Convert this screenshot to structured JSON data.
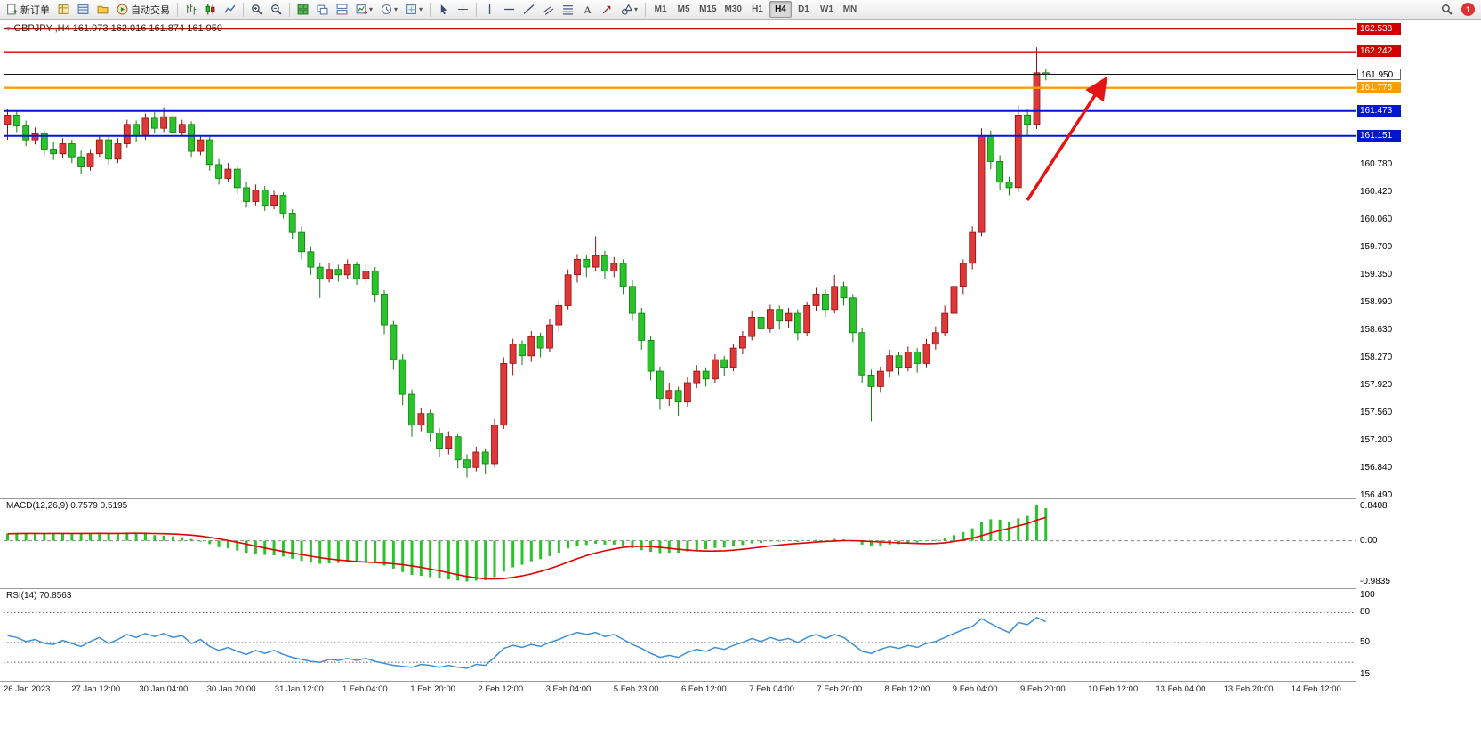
{
  "toolbar": {
    "new_order_label": "新订单",
    "auto_trading_label": "自动交易",
    "timeframes": [
      "M1",
      "M5",
      "M15",
      "M30",
      "H1",
      "H4",
      "D1",
      "W1",
      "MN"
    ],
    "active_timeframe": "H4",
    "notification_count": "1",
    "items": [
      {
        "type": "btn",
        "name": "new-order-button",
        "icon": "new-order",
        "label_key": "new_order_label"
      },
      {
        "type": "btn",
        "name": "market-watch-button",
        "icon": "market-watch"
      },
      {
        "type": "btn",
        "name": "data-window-button",
        "icon": "data-window"
      },
      {
        "type": "btn",
        "name": "navigator-button",
        "icon": "navigator"
      },
      {
        "type": "btn",
        "name": "auto-trading-button",
        "icon": "auto-trading",
        "label_key": "auto_trading_label"
      },
      {
        "type": "sep"
      },
      {
        "type": "btn",
        "name": "bar-chart-button",
        "icon": "bars"
      },
      {
        "type": "btn",
        "name": "candlestick-chart-button",
        "icon": "candles"
      },
      {
        "type": "btn",
        "name": "line-chart-button",
        "icon": "line"
      },
      {
        "type": "sep"
      },
      {
        "type": "btn",
        "name": "zoom-in-button",
        "icon": "zoom-in"
      },
      {
        "type": "btn",
        "name": "zoom-out-button",
        "icon": "zoom-out"
      },
      {
        "type": "sep"
      },
      {
        "type": "btn",
        "name": "tile-windows-button",
        "icon": "tile"
      },
      {
        "type": "btn",
        "name": "arrange-windows-button",
        "icon": "arrange"
      },
      {
        "type": "btn",
        "name": "cascade-windows-button",
        "icon": "cascade"
      },
      {
        "type": "btn",
        "name": "new-chart-button",
        "icon": "new-chart",
        "caret": true
      },
      {
        "type": "btn",
        "name": "periods-button",
        "icon": "clock",
        "caret": true
      },
      {
        "type": "btn",
        "name": "templates-button",
        "icon": "template",
        "caret": true
      },
      {
        "type": "sep"
      },
      {
        "type": "btn",
        "name": "cursor-button",
        "icon": "cursor"
      },
      {
        "type": "btn",
        "name": "crosshair-button",
        "icon": "crosshair"
      },
      {
        "type": "sep"
      },
      {
        "type": "btn",
        "name": "vertical-line-button",
        "icon": "vline"
      },
      {
        "type": "btn",
        "name": "horizontal-line-button",
        "icon": "hline"
      },
      {
        "type": "btn",
        "name": "trendline-button",
        "icon": "tline"
      },
      {
        "type": "btn",
        "name": "channel-button",
        "icon": "channel"
      },
      {
        "type": "btn",
        "name": "fibonacci-button",
        "icon": "fibo"
      },
      {
        "type": "btn",
        "name": "text-button",
        "icon": "text"
      },
      {
        "type": "btn",
        "name": "arrows-button",
        "icon": "arrows"
      },
      {
        "type": "btn",
        "name": "shapes-button",
        "icon": "shapes",
        "caret": true
      },
      {
        "type": "sep"
      }
    ]
  },
  "chart": {
    "symbol_label": "GBPJPY-,H4 161.973 162.016 161.874 161.950",
    "colors": {
      "up": "#df3838",
      "up_stroke": "#8d1010",
      "down": "#2bc32b",
      "down_stroke": "#0b7d0b",
      "wick": "#222222"
    },
    "price_max": 162.66,
    "price_min": 156.45,
    "levels": [
      {
        "value": 162.538,
        "label": "162.538",
        "line_color": "#d40000",
        "line_width": 1.4,
        "label_bg": "#d40000",
        "label_color": "#ffffff"
      },
      {
        "value": 162.242,
        "label": "162.242",
        "line_color": "#d40000",
        "line_width": 1.4,
        "label_bg": "#d40000",
        "label_color": "#ffffff"
      },
      {
        "value": 161.95,
        "label": "161.950",
        "line_color": "#111111",
        "line_width": 1,
        "label_bg": "#ffffff",
        "label_color": "#000000",
        "label_border": "#666666"
      },
      {
        "value": 161.775,
        "label": "161.775",
        "line_color": "#ff9c00",
        "line_width": 2.4,
        "label_bg": "#ff9c00",
        "label_color": "#ffffff"
      },
      {
        "value": 161.473,
        "label": "161.473",
        "line_color": "#0018cc",
        "line_width": 2,
        "label_bg": "#0018cc",
        "label_color": "#ffffff"
      },
      {
        "value": 161.151,
        "label": "161.151",
        "line_color": "#0018cc",
        "line_width": 2,
        "label_bg": "#0018cc",
        "label_color": "#ffffff"
      }
    ],
    "y_labels": [
      "160.780",
      "160.420",
      "160.060",
      "159.700",
      "159.350",
      "158.990",
      "158.630",
      "158.270",
      "157.920",
      "157.560",
      "157.200",
      "156.840",
      "156.490"
    ],
    "y_values": [
      160.78,
      160.42,
      160.06,
      159.7,
      159.35,
      158.99,
      158.63,
      158.27,
      157.92,
      157.56,
      157.2,
      156.84,
      156.49
    ]
  },
  "macd": {
    "label": "MACD(12,26,9) 0.7579 0.5195",
    "scale_top": "0.8408",
    "scale_zero": "0.00",
    "scale_bottom": "-0.9835",
    "scale_top_value": 0.8408,
    "scale_bottom_value": -0.9835,
    "hist_color": "#2bc32b",
    "signal_color": "#e00000"
  },
  "rsi": {
    "label": "RSI(14) 70.8563",
    "line_color": "#3f8fd4",
    "levels": [
      80,
      50,
      30
    ],
    "scale_labels": [
      {
        "text": "100",
        "value": 100
      },
      {
        "text": "80",
        "value": 80
      },
      {
        "text": "50",
        "value": 50
      },
      {
        "text": "15",
        "value": 15
      }
    ],
    "scale_max": 100,
    "scale_min": 15
  },
  "x_labels": [
    "26 Jan 2023",
    "27 Jan 12:00",
    "30 Jan 04:00",
    "30 Jan 20:00",
    "31 Jan 12:00",
    "1 Feb 04:00",
    "1 Feb 20:00",
    "2 Feb 12:00",
    "3 Feb 04:00",
    "5 Feb 23:00",
    "6 Feb 12:00",
    "7 Feb 04:00",
    "7 Feb 20:00",
    "8 Feb 12:00",
    "9 Feb 04:00",
    "9 Feb 20:00",
    "10 Feb 12:00",
    "13 Feb 04:00",
    "13 Feb 20:00",
    "14 Feb 12:00"
  ],
  "annotation": {
    "arrow_color": "#e41414"
  },
  "chart_data": {
    "type": "candlestick",
    "symbol": "GBPJPY-",
    "timeframe": "H4",
    "current_bar": {
      "open": "161.973",
      "high": "162.016",
      "low": "161.874",
      "close": "161.950"
    },
    "candles": [
      [
        161.3,
        161.5,
        161.1,
        161.42
      ],
      [
        161.42,
        161.48,
        161.2,
        161.28
      ],
      [
        161.28,
        161.35,
        161.02,
        161.1
      ],
      [
        161.1,
        161.26,
        161.04,
        161.18
      ],
      [
        161.18,
        161.22,
        160.9,
        160.98
      ],
      [
        160.98,
        161.08,
        160.84,
        160.92
      ],
      [
        160.92,
        161.12,
        160.86,
        161.05
      ],
      [
        161.05,
        161.1,
        160.8,
        160.88
      ],
      [
        160.88,
        160.96,
        160.66,
        160.75
      ],
      [
        160.75,
        160.98,
        160.7,
        160.92
      ],
      [
        160.92,
        161.16,
        160.88,
        161.1
      ],
      [
        161.1,
        161.15,
        160.78,
        160.85
      ],
      [
        160.85,
        161.12,
        160.8,
        161.05
      ],
      [
        161.05,
        161.36,
        161.0,
        161.3
      ],
      [
        161.3,
        161.35,
        161.08,
        161.15
      ],
      [
        161.15,
        161.44,
        161.1,
        161.38
      ],
      [
        161.38,
        161.46,
        161.18,
        161.25
      ],
      [
        161.25,
        161.52,
        161.2,
        161.4
      ],
      [
        161.4,
        161.45,
        161.12,
        161.2
      ],
      [
        161.2,
        161.36,
        161.14,
        161.3
      ],
      [
        161.3,
        161.34,
        160.88,
        160.95
      ],
      [
        160.95,
        161.16,
        160.9,
        161.1
      ],
      [
        161.1,
        161.14,
        160.7,
        160.78
      ],
      [
        160.78,
        160.85,
        160.52,
        160.6
      ],
      [
        160.6,
        160.8,
        160.55,
        160.72
      ],
      [
        160.72,
        160.76,
        160.4,
        160.48
      ],
      [
        160.48,
        160.55,
        160.22,
        160.3
      ],
      [
        160.3,
        160.52,
        160.25,
        160.45
      ],
      [
        160.45,
        160.5,
        160.18,
        160.25
      ],
      [
        160.25,
        160.44,
        160.2,
        160.38
      ],
      [
        160.38,
        160.42,
        160.08,
        160.15
      ],
      [
        160.15,
        160.2,
        159.82,
        159.9
      ],
      [
        159.9,
        159.98,
        159.55,
        159.65
      ],
      [
        159.65,
        159.72,
        159.35,
        159.45
      ],
      [
        159.45,
        159.5,
        159.05,
        159.3
      ],
      [
        159.3,
        159.5,
        159.25,
        159.42
      ],
      [
        159.42,
        159.48,
        159.26,
        159.35
      ],
      [
        159.35,
        159.55,
        159.3,
        159.48
      ],
      [
        159.48,
        159.52,
        159.22,
        159.3
      ],
      [
        159.3,
        159.48,
        159.24,
        159.4
      ],
      [
        159.4,
        159.45,
        159.0,
        159.1
      ],
      [
        159.1,
        159.15,
        158.58,
        158.7
      ],
      [
        158.7,
        158.75,
        158.12,
        158.25
      ],
      [
        158.25,
        158.32,
        157.66,
        157.8
      ],
      [
        157.8,
        157.86,
        157.25,
        157.4
      ],
      [
        157.4,
        157.62,
        157.32,
        157.55
      ],
      [
        157.55,
        157.6,
        157.18,
        157.3
      ],
      [
        157.3,
        157.36,
        156.98,
        157.1
      ],
      [
        157.1,
        157.32,
        157.02,
        157.25
      ],
      [
        157.25,
        157.28,
        156.84,
        156.95
      ],
      [
        156.95,
        157.02,
        156.72,
        156.85
      ],
      [
        156.85,
        157.12,
        156.8,
        157.05
      ],
      [
        157.05,
        157.1,
        156.76,
        156.9
      ],
      [
        156.9,
        157.48,
        156.85,
        157.4
      ],
      [
        157.4,
        158.28,
        157.35,
        158.2
      ],
      [
        158.2,
        158.52,
        158.05,
        158.45
      ],
      [
        158.45,
        158.5,
        158.18,
        158.3
      ],
      [
        158.3,
        158.62,
        158.22,
        158.55
      ],
      [
        158.55,
        158.6,
        158.28,
        158.4
      ],
      [
        158.4,
        158.78,
        158.35,
        158.7
      ],
      [
        158.7,
        159.02,
        158.6,
        158.95
      ],
      [
        158.95,
        159.42,
        158.9,
        159.35
      ],
      [
        159.35,
        159.62,
        159.25,
        159.55
      ],
      [
        159.55,
        159.6,
        159.32,
        159.45
      ],
      [
        159.45,
        159.85,
        159.4,
        159.6
      ],
      [
        159.6,
        159.66,
        159.3,
        159.4
      ],
      [
        159.4,
        159.58,
        159.32,
        159.5
      ],
      [
        159.5,
        159.55,
        159.1,
        159.2
      ],
      [
        159.2,
        159.28,
        158.75,
        158.85
      ],
      [
        158.85,
        158.92,
        158.38,
        158.5
      ],
      [
        158.5,
        158.56,
        157.98,
        158.1
      ],
      [
        158.1,
        158.16,
        157.6,
        157.75
      ],
      [
        157.75,
        157.95,
        157.65,
        157.85
      ],
      [
        157.85,
        157.9,
        157.52,
        157.7
      ],
      [
        157.7,
        158.02,
        157.64,
        157.95
      ],
      [
        157.95,
        158.18,
        157.88,
        158.1
      ],
      [
        158.1,
        158.15,
        157.9,
        158.0
      ],
      [
        158.0,
        158.32,
        157.95,
        158.25
      ],
      [
        158.25,
        158.3,
        158.04,
        158.15
      ],
      [
        158.15,
        158.46,
        158.1,
        158.4
      ],
      [
        158.4,
        158.62,
        158.32,
        158.55
      ],
      [
        158.55,
        158.88,
        158.5,
        158.8
      ],
      [
        158.8,
        158.85,
        158.55,
        158.65
      ],
      [
        158.65,
        158.96,
        158.6,
        158.9
      ],
      [
        158.9,
        158.95,
        158.64,
        158.75
      ],
      [
        158.75,
        158.92,
        158.66,
        158.85
      ],
      [
        158.85,
        158.9,
        158.5,
        158.6
      ],
      [
        158.6,
        159.0,
        158.55,
        158.95
      ],
      [
        158.95,
        159.18,
        158.88,
        159.1
      ],
      [
        159.1,
        159.16,
        158.8,
        158.9
      ],
      [
        158.9,
        159.35,
        158.85,
        159.2
      ],
      [
        159.2,
        159.26,
        158.95,
        159.05
      ],
      [
        159.05,
        159.1,
        158.48,
        158.6
      ],
      [
        158.6,
        158.66,
        157.95,
        158.05
      ],
      [
        158.05,
        158.12,
        157.45,
        157.9
      ],
      [
        157.9,
        158.16,
        157.82,
        158.1
      ],
      [
        158.1,
        158.38,
        158.02,
        158.3
      ],
      [
        158.3,
        158.35,
        158.05,
        158.15
      ],
      [
        158.15,
        158.42,
        158.1,
        158.35
      ],
      [
        158.35,
        158.4,
        158.08,
        158.2
      ],
      [
        158.2,
        158.52,
        158.15,
        158.45
      ],
      [
        158.45,
        158.68,
        158.38,
        158.6
      ],
      [
        158.6,
        158.95,
        158.55,
        158.85
      ],
      [
        158.85,
        159.25,
        158.8,
        159.2
      ],
      [
        159.2,
        159.55,
        159.1,
        159.5
      ],
      [
        159.5,
        159.98,
        159.42,
        159.9
      ],
      [
        159.9,
        161.25,
        159.85,
        161.15
      ],
      [
        161.15,
        161.22,
        160.72,
        160.82
      ],
      [
        160.82,
        160.9,
        160.45,
        160.55
      ],
      [
        160.55,
        160.62,
        160.38,
        160.48
      ],
      [
        160.48,
        161.55,
        160.42,
        161.42
      ],
      [
        161.42,
        161.5,
        161.16,
        161.3
      ],
      [
        161.3,
        162.3,
        161.24,
        161.97
      ],
      [
        161.97,
        162.02,
        161.87,
        161.95
      ]
    ],
    "macd_hist": [
      0.16,
      0.17,
      0.18,
      0.17,
      0.16,
      0.17,
      0.18,
      0.17,
      0.16,
      0.17,
      0.18,
      0.16,
      0.17,
      0.19,
      0.18,
      0.16,
      0.13,
      0.12,
      0.1,
      0.08,
      0.04,
      -0.02,
      -0.08,
      -0.15,
      -0.18,
      -0.23,
      -0.28,
      -0.3,
      -0.33,
      -0.34,
      -0.37,
      -0.42,
      -0.47,
      -0.51,
      -0.54,
      -0.53,
      -0.52,
      -0.5,
      -0.5,
      -0.49,
      -0.52,
      -0.58,
      -0.65,
      -0.73,
      -0.8,
      -0.82,
      -0.85,
      -0.88,
      -0.9,
      -0.93,
      -0.95,
      -0.93,
      -0.92,
      -0.85,
      -0.72,
      -0.62,
      -0.56,
      -0.48,
      -0.43,
      -0.36,
      -0.28,
      -0.18,
      -0.12,
      -0.1,
      -0.07,
      -0.09,
      -0.09,
      -0.12,
      -0.17,
      -0.22,
      -0.26,
      -0.29,
      -0.28,
      -0.28,
      -0.25,
      -0.22,
      -0.2,
      -0.17,
      -0.16,
      -0.13,
      -0.1,
      -0.06,
      -0.05,
      -0.02,
      -0.02,
      -0.01,
      -0.03,
      -0.01,
      0.02,
      0.01,
      0.04,
      0.03,
      -0.02,
      -0.09,
      -0.13,
      -0.12,
      -0.09,
      -0.08,
      -0.05,
      -0.04,
      -0.01,
      0.02,
      0.07,
      0.13,
      0.2,
      0.29,
      0.45,
      0.5,
      0.49,
      0.45,
      0.52,
      0.58,
      0.8408,
      0.7579
    ],
    "rsi": [
      57,
      55,
      51,
      53,
      49,
      48,
      52,
      49,
      46,
      51,
      55,
      49,
      53,
      58,
      55,
      59,
      56,
      59,
      55,
      57,
      49,
      53,
      46,
      42,
      45,
      41,
      38,
      42,
      39,
      42,
      38,
      35,
      33,
      31,
      30,
      33,
      32,
      34,
      32,
      34,
      31,
      29,
      27,
      26,
      25,
      28,
      27,
      25,
      27,
      25,
      24,
      28,
      27,
      35,
      44,
      47,
      45,
      48,
      46,
      50,
      53,
      57,
      60,
      58,
      60,
      56,
      58,
      53,
      48,
      44,
      39,
      35,
      37,
      35,
      40,
      43,
      41,
      45,
      43,
      47,
      50,
      54,
      51,
      55,
      52,
      54,
      50,
      55,
      58,
      54,
      58,
      55,
      48,
      41,
      39,
      43,
      46,
      44,
      47,
      45,
      49,
      51,
      55,
      59,
      63,
      66,
      74,
      69,
      64,
      60,
      70,
      68,
      75,
      70.86
    ]
  }
}
